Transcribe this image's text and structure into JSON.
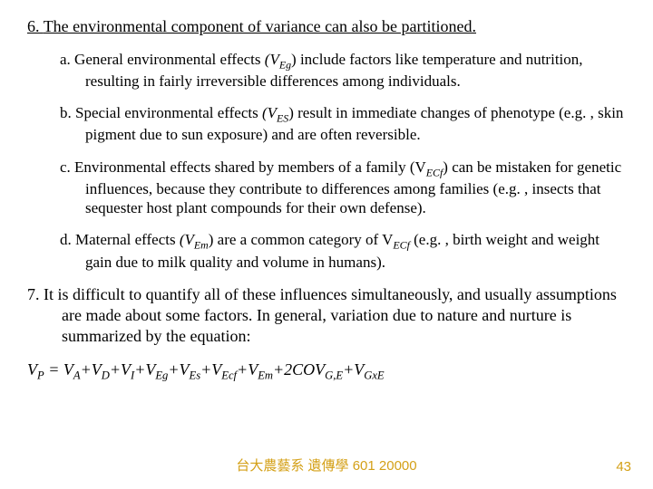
{
  "colors": {
    "text": "#000000",
    "background": "#ffffff",
    "footer": "#d4a017"
  },
  "typography": {
    "body_family": "Times New Roman",
    "body_size_pt": 18,
    "sub_size_pt": 17,
    "footer_size_pt": 15
  },
  "point6": {
    "num": "6.",
    "text": "The environmental component of variance can also be partitioned."
  },
  "a": {
    "label": "a.",
    "pre": "General environmental effects ",
    "var": "(V",
    "sub": "Eg",
    "post": ") include factors like temperature and nutrition, resulting in fairly irreversible differences among individuals."
  },
  "b": {
    "label": "b.",
    "pre": "Special environmental effects ",
    "var": "(V",
    "sub": "ES",
    "post": ") result in immediate changes of phenotype (e.g. , skin pigment due to sun exposure) and are often reversible."
  },
  "c": {
    "label": "c.",
    "pre": "Environmental effects shared by members of a family (V",
    "sub": "ECf",
    "post": ") can be mistaken for genetic influences, because they contribute to differences among families (e.g. , insects that sequester host plant compounds for their own defense)."
  },
  "d": {
    "label": "d.",
    "pre": "Maternal effects ",
    "var": "(V",
    "sub": "Em",
    "mid": ") are a common category of V",
    "sub2": "ECf",
    "post": " (e.g. , birth weight and weight gain due to milk quality and volume in humans)."
  },
  "point7": {
    "num": "7.",
    "text": "It is difficult to quantify all of these influences simultaneously, and usually assumptions are made about some factors. In general, variation due to nature and nurture is summarized by the equation:"
  },
  "equation": {
    "lhs": "V",
    "lhs_sub": "P",
    "eq": " = ",
    "terms": [
      {
        "v": "V",
        "s": "A"
      },
      {
        "v": "V",
        "s": "D"
      },
      {
        "v": "V",
        "s": "I"
      },
      {
        "v": "V",
        "s": "Eg"
      },
      {
        "v": "V",
        "s": "Es"
      },
      {
        "v": "V",
        "s": "Ecf"
      },
      {
        "v": "V",
        "s": "Em"
      },
      {
        "v": "2COV",
        "s": "G,E"
      },
      {
        "v": "V",
        "s": "GxE"
      }
    ]
  },
  "footer": {
    "center": "台大農藝系 遺傳學 601 20000",
    "page": "43"
  }
}
